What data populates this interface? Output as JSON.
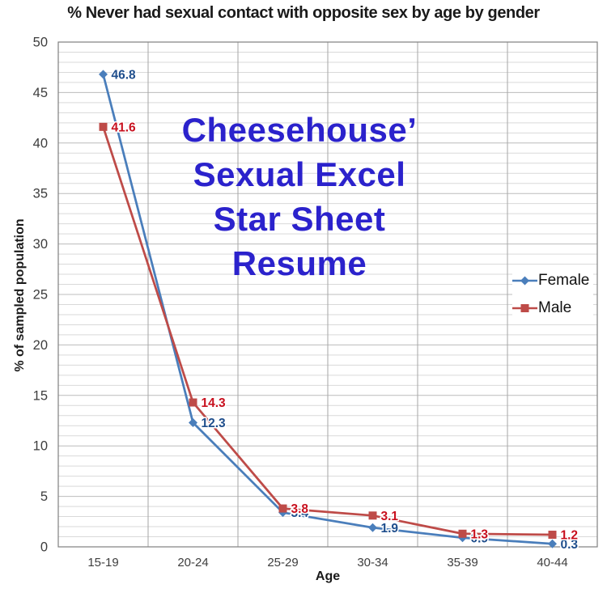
{
  "chart_data": {
    "type": "line",
    "title": "% Never had sexual contact with opposite sex by age by gender",
    "xlabel": "Age",
    "ylabel": "% of sampled population",
    "categories": [
      "15-19",
      "20-24",
      "25-29",
      "30-34",
      "35-39",
      "40-44"
    ],
    "series": [
      {
        "name": "Female",
        "values": [
          46.8,
          12.3,
          3.4,
          1.9,
          0.9,
          0.3
        ],
        "color": "#4A7EBB",
        "marker": "diamond",
        "label_color": "#1F4E8C"
      },
      {
        "name": "Male",
        "values": [
          41.6,
          14.3,
          3.8,
          3.1,
          1.3,
          1.2
        ],
        "color": "#BE4B48",
        "marker": "square",
        "label_color": "#C8101E"
      }
    ],
    "ylim": [
      0,
      50
    ],
    "y_major_step": 5,
    "y_minor_step": 1,
    "grid": {
      "horizontal_minor_color": "#d9d9d9",
      "horizontal_major_color": "#bcbcbc",
      "vertical_color": "#a6a6a6",
      "border_color": "#808080"
    },
    "tick_label_color": "#3d3d3d",
    "legend_position": "middle-right",
    "data_labels": "shown right of each point, bold",
    "watermark": {
      "lines": [
        "Cheesehouse’",
        "Sexual Excel",
        "Star Sheet",
        "Resume"
      ],
      "color": "#2B22CC"
    }
  }
}
